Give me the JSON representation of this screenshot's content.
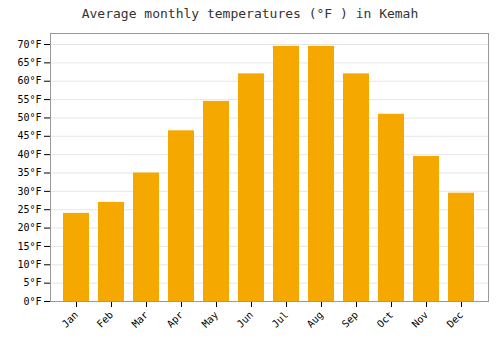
{
  "chart_data": {
    "type": "bar",
    "title": "Average monthly temperatures (°F ) in Kemah",
    "categories": [
      "Jan",
      "Feb",
      "Mar",
      "Apr",
      "May",
      "Jun",
      "Jul",
      "Aug",
      "Sep",
      "Oct",
      "Nov",
      "Dec"
    ],
    "values": [
      24,
      27,
      35,
      46.5,
      54.5,
      62,
      69.5,
      69.5,
      62,
      51,
      39.5,
      29.5
    ],
    "color": "#F5A800",
    "ylim": [
      0,
      73
    ],
    "yticks": [
      {
        "value": 0,
        "label": "0°F"
      },
      {
        "value": 5,
        "label": "5°F"
      },
      {
        "value": 10,
        "label": "10°F"
      },
      {
        "value": 15,
        "label": "15°F"
      },
      {
        "value": 20,
        "label": "20°F"
      },
      {
        "value": 25,
        "label": "25°F"
      },
      {
        "value": 30,
        "label": "30°F"
      },
      {
        "value": 35,
        "label": "35°F"
      },
      {
        "value": 40,
        "label": "40°F"
      },
      {
        "value": 45,
        "label": "45°F"
      },
      {
        "value": 50,
        "label": "50°F"
      },
      {
        "value": 55,
        "label": "55°F"
      },
      {
        "value": 60,
        "label": "60°F"
      },
      {
        "value": 65,
        "label": "65°F"
      },
      {
        "value": 70,
        "label": "70°F"
      }
    ],
    "grid": true
  }
}
